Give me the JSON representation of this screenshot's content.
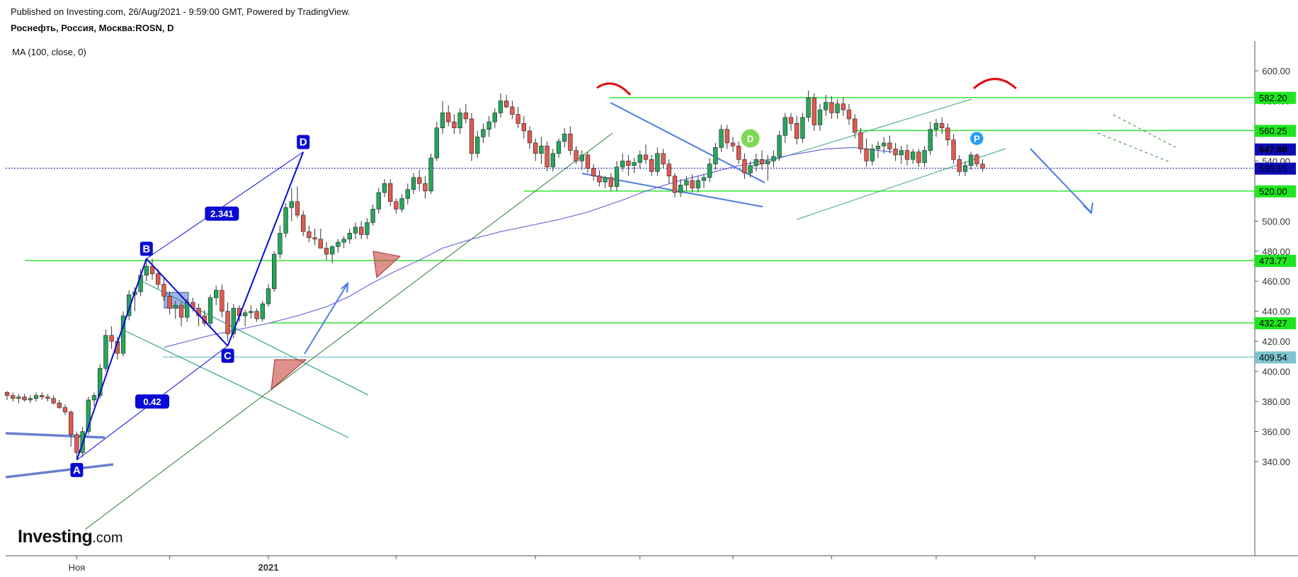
{
  "header": {
    "published": "Published on Investing.com, 26/Aug/2021 - 9:59:00 GMT, Powered by TradingView.",
    "symbol": "Роснефть, Россия, Москва:ROSN, D",
    "indicator": "MA (100, close, 0)"
  },
  "logo": {
    "word": "Investing",
    "suffix": ".com"
  },
  "colors": {
    "up": "#26a65b",
    "down": "#e05a4f",
    "level_line": "#33e633",
    "level_fill": "#1ee61e",
    "ma": "#6b6bd9",
    "pattern_blue": "#0a0ad6",
    "arrow_blue": "#4a7de0",
    "dark_green": "#2f7a2f",
    "channel_teal": "#3aa08a",
    "price_tag": "#0b0bb5",
    "support_tag": "#7ec4cf",
    "arc_red": "#e01010"
  },
  "chart_data": {
    "type": "candlestick",
    "title": "Роснефть, Россия, Москва:ROSN, D",
    "ylim": [
      330,
      615
    ],
    "y_ticks": [
      "600.00",
      "580.00",
      "560.00",
      "540.00",
      "520.00",
      "500.00",
      "480.00",
      "460.00",
      "440.00",
      "420.00",
      "400.00",
      "380.00",
      "360.00",
      "340.00"
    ],
    "x_labels": [
      {
        "label": "Ноя",
        "idx": 12
      },
      {
        "label": "2021",
        "idx": 45
      }
    ],
    "current_price": "535.15",
    "ma_price": "547.88",
    "levels": [
      {
        "value": 582.2,
        "label": "582.20"
      },
      {
        "value": 560.25,
        "label": "560.25"
      },
      {
        "value": 520.0,
        "label": "520.00"
      },
      {
        "value": 473.77,
        "label": "473.77"
      },
      {
        "value": 432.27,
        "label": "432.27"
      }
    ],
    "support_level": {
      "value": 409.54,
      "label": "409.54"
    },
    "waves": [
      {
        "label": "A",
        "idx": 12,
        "price": 341
      },
      {
        "label": "B",
        "idx": 24,
        "price": 475
      },
      {
        "label": "C",
        "idx": 38,
        "price": 417
      },
      {
        "label": "D",
        "idx": 51,
        "price": 546
      }
    ],
    "ratios": [
      {
        "label": "2.341",
        "idx": 37,
        "price": 505
      },
      {
        "label": "0.42",
        "idx": 25,
        "price": 380
      }
    ],
    "markers": [
      {
        "label": "D",
        "idx": 128,
        "price": 555
      },
      {
        "label": "P",
        "idx": 167,
        "price": 555
      }
    ],
    "ohlc": [
      [
        386,
        387,
        381,
        384
      ],
      [
        384,
        386,
        380,
        382
      ],
      [
        382,
        385,
        379,
        383
      ],
      [
        383,
        385,
        380,
        381
      ],
      [
        381,
        384,
        379,
        382
      ],
      [
        382,
        386,
        380,
        384
      ],
      [
        384,
        386,
        381,
        383
      ],
      [
        383,
        385,
        380,
        382
      ],
      [
        382,
        384,
        378,
        379
      ],
      [
        379,
        381,
        375,
        376
      ],
      [
        376,
        378,
        371,
        373
      ],
      [
        373,
        374,
        350,
        358
      ],
      [
        358,
        360,
        342,
        346
      ],
      [
        346,
        363,
        343,
        360
      ],
      [
        360,
        383,
        358,
        381
      ],
      [
        381,
        386,
        377,
        384
      ],
      [
        384,
        405,
        382,
        402
      ],
      [
        402,
        428,
        400,
        424
      ],
      [
        424,
        430,
        415,
        420
      ],
      [
        420,
        423,
        408,
        412
      ],
      [
        412,
        440,
        410,
        437
      ],
      [
        437,
        454,
        434,
        451
      ],
      [
        451,
        456,
        440,
        453
      ],
      [
        453,
        468,
        450,
        464
      ],
      [
        464,
        474,
        460,
        470
      ],
      [
        470,
        475,
        461,
        465
      ],
      [
        465,
        468,
        455,
        458
      ],
      [
        458,
        462,
        447,
        450
      ],
      [
        450,
        453,
        438,
        442
      ],
      [
        442,
        447,
        435,
        444
      ],
      [
        444,
        446,
        430,
        436
      ],
      [
        436,
        448,
        433,
        446
      ],
      [
        446,
        449,
        440,
        442
      ],
      [
        442,
        445,
        430,
        437
      ],
      [
        437,
        441,
        430,
        432
      ],
      [
        432,
        451,
        430,
        449
      ],
      [
        449,
        457,
        444,
        454
      ],
      [
        454,
        458,
        436,
        440
      ],
      [
        440,
        446,
        420,
        425
      ],
      [
        425,
        445,
        422,
        442
      ],
      [
        442,
        444,
        433,
        437
      ],
      [
        437,
        441,
        430,
        439
      ],
      [
        439,
        444,
        435,
        440
      ],
      [
        440,
        442,
        433,
        435
      ],
      [
        435,
        447,
        433,
        445
      ],
      [
        445,
        458,
        443,
        455
      ],
      [
        455,
        480,
        453,
        478
      ],
      [
        478,
        497,
        475,
        492
      ],
      [
        492,
        512,
        489,
        509
      ],
      [
        509,
        522,
        500,
        513
      ],
      [
        513,
        523,
        502,
        504
      ],
      [
        504,
        507,
        490,
        493
      ],
      [
        493,
        497,
        486,
        489
      ],
      [
        489,
        495,
        484,
        488
      ],
      [
        488,
        495,
        484,
        482
      ],
      [
        482,
        486,
        474,
        478
      ],
      [
        478,
        484,
        472,
        483
      ],
      [
        483,
        488,
        479,
        486
      ],
      [
        486,
        490,
        482,
        488
      ],
      [
        488,
        495,
        485,
        492
      ],
      [
        492,
        499,
        488,
        496
      ],
      [
        496,
        500,
        488,
        491
      ],
      [
        491,
        502,
        488,
        499
      ],
      [
        499,
        511,
        497,
        508
      ],
      [
        508,
        522,
        505,
        519
      ],
      [
        519,
        528,
        516,
        525
      ],
      [
        525,
        528,
        510,
        513
      ],
      [
        513,
        515,
        505,
        508
      ],
      [
        508,
        518,
        506,
        515
      ],
      [
        515,
        525,
        511,
        521
      ],
      [
        521,
        532,
        518,
        529
      ],
      [
        529,
        534,
        520,
        525
      ],
      [
        525,
        530,
        515,
        520
      ],
      [
        520,
        545,
        518,
        542
      ],
      [
        542,
        566,
        540,
        562
      ],
      [
        562,
        580,
        558,
        572
      ],
      [
        572,
        577,
        563,
        566
      ],
      [
        566,
        571,
        558,
        562
      ],
      [
        562,
        575,
        558,
        572
      ],
      [
        572,
        578,
        565,
        568
      ],
      [
        568,
        572,
        540,
        545
      ],
      [
        545,
        560,
        542,
        556
      ],
      [
        556,
        565,
        552,
        561
      ],
      [
        561,
        570,
        556,
        566
      ],
      [
        566,
        575,
        562,
        572
      ],
      [
        572,
        585,
        569,
        580
      ],
      [
        580,
        584,
        575,
        576
      ],
      [
        576,
        580,
        568,
        571
      ],
      [
        571,
        576,
        562,
        565
      ],
      [
        565,
        570,
        555,
        560
      ],
      [
        560,
        563,
        548,
        552
      ],
      [
        552,
        555,
        540,
        545
      ],
      [
        545,
        556,
        538,
        550
      ],
      [
        550,
        553,
        533,
        536
      ],
      [
        536,
        548,
        533,
        545
      ],
      [
        545,
        555,
        542,
        553
      ],
      [
        553,
        562,
        549,
        558
      ],
      [
        558,
        563,
        544,
        547
      ],
      [
        547,
        550,
        538,
        540
      ],
      [
        540,
        547,
        534,
        544
      ],
      [
        544,
        546,
        532,
        535
      ],
      [
        535,
        538,
        527,
        530
      ],
      [
        530,
        534,
        523,
        526
      ],
      [
        526,
        530,
        522,
        529
      ],
      [
        529,
        532,
        520,
        523
      ],
      [
        523,
        540,
        520,
        536
      ],
      [
        536,
        545,
        533,
        540
      ],
      [
        540,
        544,
        530,
        537
      ],
      [
        537,
        542,
        532,
        539
      ],
      [
        539,
        547,
        535,
        544
      ],
      [
        544,
        551,
        538,
        541
      ],
      [
        541,
        544,
        530,
        533
      ],
      [
        533,
        549,
        530,
        545
      ],
      [
        545,
        548,
        535,
        538
      ],
      [
        538,
        541,
        525,
        530
      ],
      [
        530,
        532,
        516,
        519
      ],
      [
        519,
        528,
        516,
        524
      ],
      [
        524,
        530,
        520,
        527
      ],
      [
        527,
        531,
        519,
        522
      ],
      [
        522,
        530,
        519,
        527
      ],
      [
        527,
        531,
        522,
        529
      ],
      [
        529,
        542,
        526,
        538
      ],
      [
        538,
        552,
        534,
        549
      ],
      [
        549,
        564,
        546,
        561
      ],
      [
        561,
        564,
        548,
        552
      ],
      [
        552,
        556,
        546,
        550
      ],
      [
        550,
        553,
        538,
        541
      ],
      [
        541,
        545,
        528,
        532
      ],
      [
        532,
        540,
        529,
        537
      ],
      [
        537,
        545,
        533,
        541
      ],
      [
        541,
        547,
        534,
        538
      ],
      [
        538,
        544,
        527,
        540
      ],
      [
        540,
        547,
        536,
        543
      ],
      [
        543,
        560,
        540,
        557
      ],
      [
        557,
        572,
        552,
        569
      ],
      [
        569,
        572,
        560,
        565
      ],
      [
        565,
        570,
        551,
        555
      ],
      [
        555,
        572,
        552,
        569
      ],
      [
        569,
        587,
        566,
        582
      ],
      [
        582,
        585,
        560,
        564
      ],
      [
        564,
        578,
        560,
        574
      ],
      [
        574,
        584,
        570,
        579
      ],
      [
        579,
        583,
        568,
        572
      ],
      [
        572,
        581,
        568,
        578
      ],
      [
        578,
        582,
        570,
        574
      ],
      [
        574,
        578,
        564,
        568
      ],
      [
        568,
        571,
        555,
        559
      ],
      [
        559,
        562,
        545,
        548
      ],
      [
        548,
        555,
        536,
        540
      ],
      [
        540,
        551,
        537,
        548
      ],
      [
        548,
        553,
        542,
        550
      ],
      [
        550,
        556,
        545,
        552
      ],
      [
        552,
        557,
        545,
        548
      ],
      [
        548,
        552,
        540,
        544
      ],
      [
        544,
        550,
        538,
        547
      ],
      [
        547,
        551,
        537,
        541
      ],
      [
        541,
        548,
        538,
        546
      ],
      [
        546,
        548,
        536,
        539
      ],
      [
        539,
        550,
        536,
        547
      ],
      [
        547,
        566,
        544,
        561
      ],
      [
        561,
        568,
        556,
        565
      ],
      [
        565,
        569,
        558,
        562
      ],
      [
        562,
        565,
        550,
        554
      ],
      [
        554,
        558,
        538,
        541
      ],
      [
        541,
        544,
        530,
        533
      ],
      [
        533,
        540,
        530,
        537
      ],
      [
        537,
        546,
        534,
        544
      ],
      [
        544,
        545,
        536,
        538
      ],
      [
        538,
        541,
        533,
        535
      ]
    ],
    "ma100": [
      [
        54,
        416
      ],
      [
        60,
        419
      ],
      [
        70,
        424
      ],
      [
        80,
        428
      ],
      [
        90,
        432
      ],
      [
        100,
        437
      ],
      [
        110,
        443
      ],
      [
        118,
        450
      ],
      [
        125,
        458
      ],
      [
        133,
        466
      ],
      [
        142,
        474
      ],
      [
        150,
        482
      ],
      [
        160,
        488
      ],
      [
        170,
        493
      ],
      [
        180,
        497
      ],
      [
        190,
        501
      ],
      [
        200,
        506
      ],
      [
        206,
        510
      ],
      [
        212,
        514
      ],
      [
        220,
        520
      ],
      [
        230,
        526
      ],
      [
        240,
        531
      ],
      [
        250,
        536
      ],
      [
        260,
        540
      ],
      [
        270,
        544
      ],
      [
        282,
        548
      ],
      [
        292,
        549
      ],
      [
        300,
        547
      ],
      [
        305,
        546
      ]
    ]
  }
}
